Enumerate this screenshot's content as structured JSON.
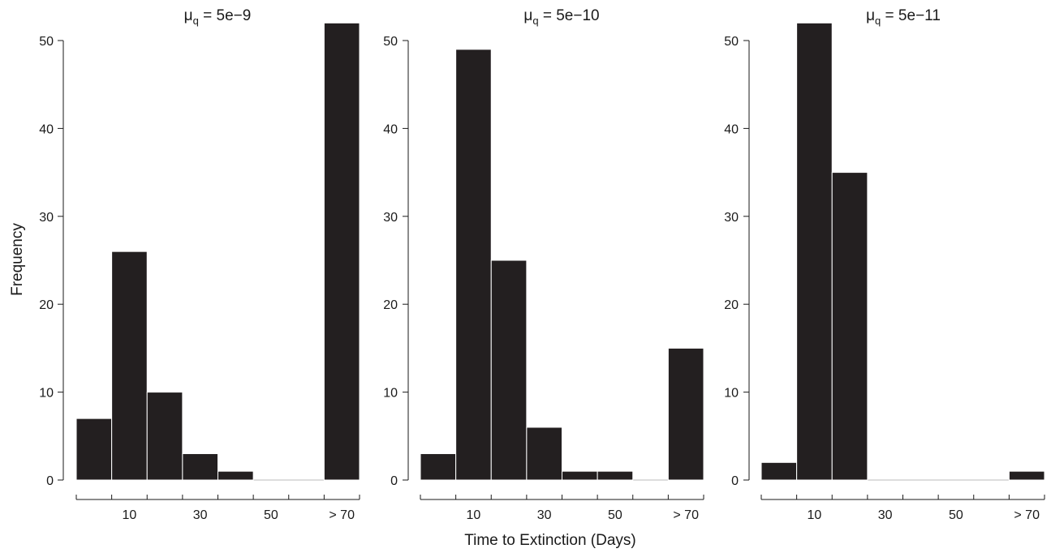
{
  "figure": {
    "ylabel": "Frequency",
    "xlabel": "Time to Extinction (Days)",
    "bar_color": "#231f20",
    "bar_edge_color": "#ffffff",
    "axis_color": "#1a1a1a"
  },
  "chart_data": [
    {
      "type": "bar",
      "title_main": "μ",
      "title_sub": "q",
      "title_rest": " = 5e−9",
      "bins": [
        "0-10",
        "10-20",
        "20-30",
        "30-40",
        "40-50",
        "50-60",
        "60-70",
        "> 70"
      ],
      "values": [
        7,
        26,
        10,
        3,
        1,
        0,
        0,
        52
      ],
      "xtick_labels": [
        "10",
        "30",
        "50",
        "> 70"
      ],
      "yticks": [
        0,
        10,
        20,
        30,
        40,
        50
      ],
      "ylim": [
        0,
        52
      ]
    },
    {
      "type": "bar",
      "title_main": "μ",
      "title_sub": "q",
      "title_rest": " = 5e−10",
      "bins": [
        "0-10",
        "10-20",
        "20-30",
        "30-40",
        "40-50",
        "50-60",
        "60-70",
        "> 70"
      ],
      "values": [
        3,
        49,
        25,
        6,
        1,
        1,
        0,
        15
      ],
      "xtick_labels": [
        "10",
        "30",
        "50",
        "> 70"
      ],
      "yticks": [
        0,
        10,
        20,
        30,
        40,
        50
      ],
      "ylim": [
        0,
        52
      ]
    },
    {
      "type": "bar",
      "title_main": "μ",
      "title_sub": "q",
      "title_rest": " = 5e−11",
      "bins": [
        "0-10",
        "10-20",
        "20-30",
        "30-40",
        "40-50",
        "50-60",
        "60-70",
        "> 70"
      ],
      "values": [
        2,
        52,
        35,
        0,
        0,
        0,
        0,
        1
      ],
      "xtick_labels": [
        "10",
        "30",
        "50",
        "> 70"
      ],
      "yticks": [
        0,
        10,
        20,
        30,
        40,
        50
      ],
      "ylim": [
        0,
        52
      ]
    }
  ]
}
